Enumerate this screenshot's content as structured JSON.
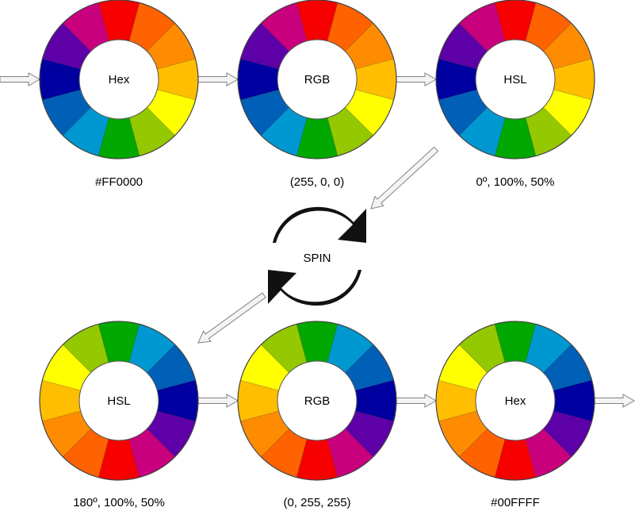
{
  "spin": {
    "label": "SPIN"
  },
  "colors": {
    "segments": [
      "#F60000",
      "#FF6200",
      "#FF8C00",
      "#FFBE00",
      "#FFFF00",
      "#94C800",
      "#00A800",
      "#0098D0",
      "#0060B8",
      "#0000A0",
      "#5E00A8",
      "#C8007E"
    ],
    "arrow_fill": "#F4F4F4",
    "arrow_stroke": "#808080",
    "spin_icon": "#111111"
  },
  "icons": {
    "spin": "refresh-cycle-icon"
  },
  "wheels": [
    {
      "id": "hex-top",
      "center_label": "Hex",
      "value": "#FF0000",
      "hue": 0
    },
    {
      "id": "rgb-top",
      "center_label": "RGB",
      "value": "(255, 0, 0)",
      "hue": 0
    },
    {
      "id": "hsl-top",
      "center_label": "HSL",
      "value": "0º, 100%, 50%",
      "hue": 0
    },
    {
      "id": "hsl-bottom",
      "center_label": "HSL",
      "value": "180º, 100%, 50%",
      "hue": 180
    },
    {
      "id": "rgb-bottom",
      "center_label": "RGB",
      "value": "(0, 255, 255)",
      "hue": 180
    },
    {
      "id": "hex-bottom",
      "center_label": "Hex",
      "value": "#00FFFF",
      "hue": 180
    }
  ]
}
